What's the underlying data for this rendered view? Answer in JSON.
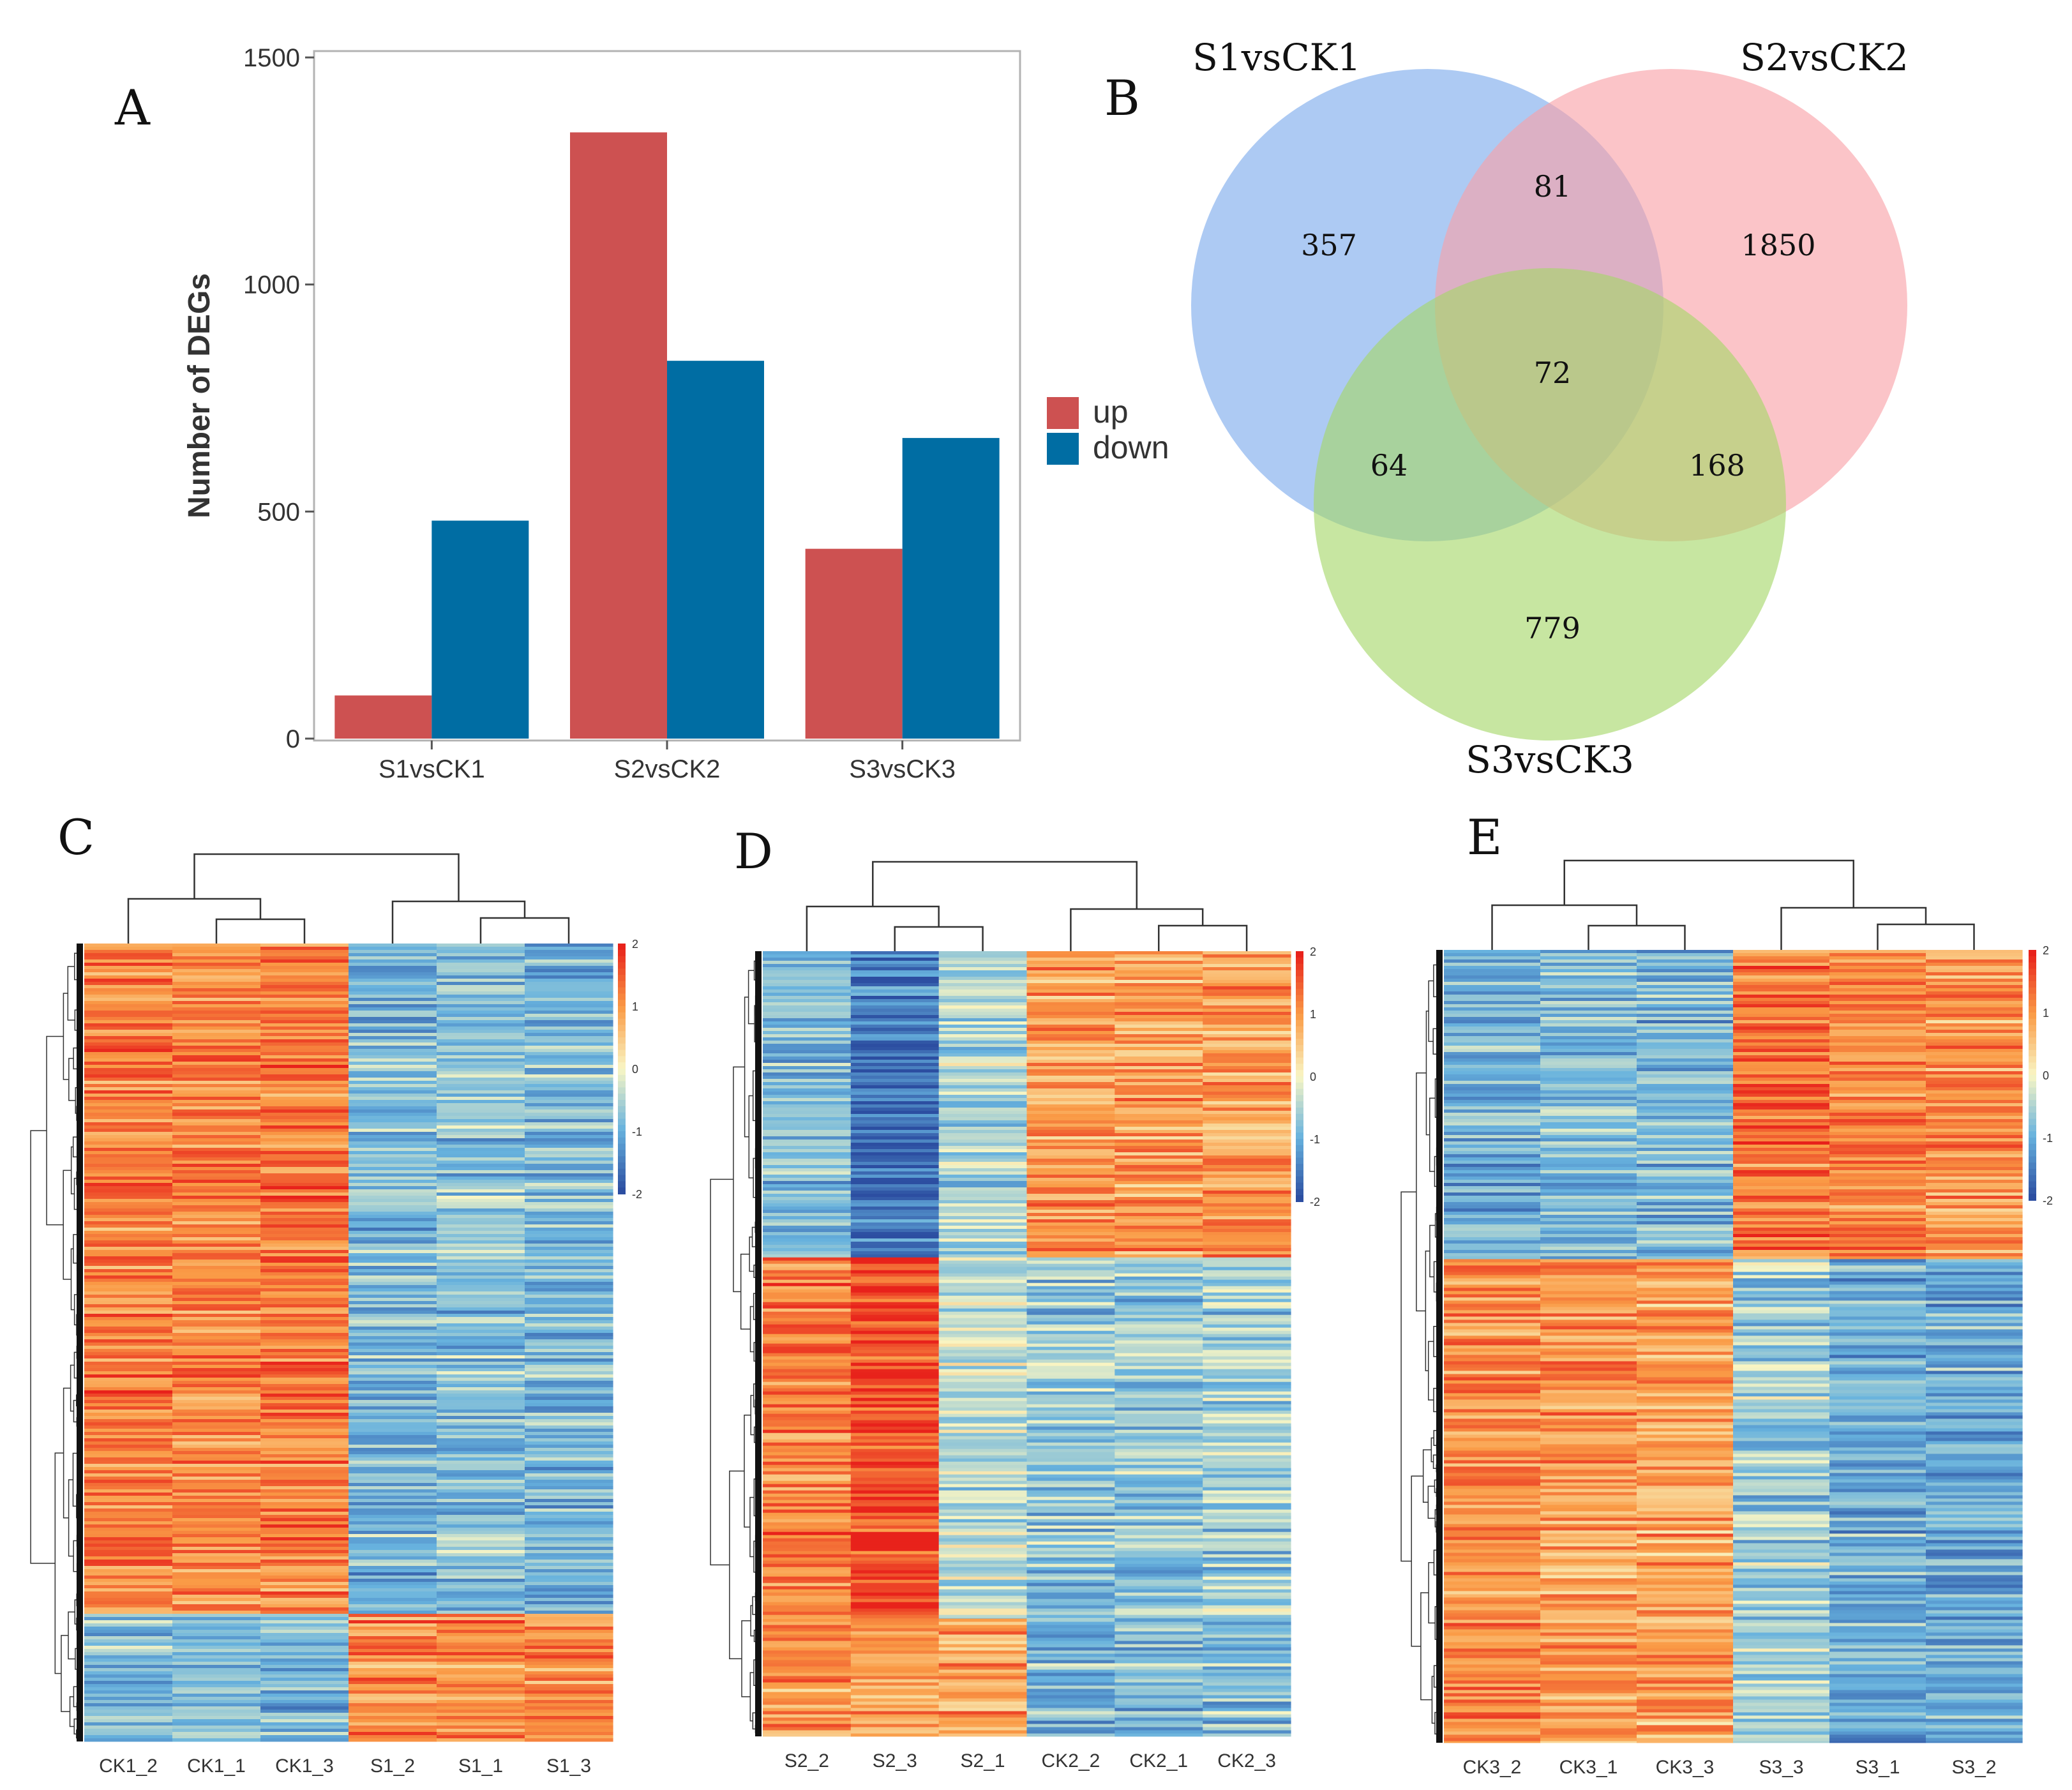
{
  "colors": {
    "up": "#cd5151",
    "down": "#006da3",
    "venn_s1": "#7aa9ec",
    "venn_s2": "#f8a0a6",
    "venn_s3": "#a4d668",
    "heat_low": "#2c4ea1",
    "heat_mid": "#f9f6c4",
    "heat_high": "#e8221b"
  },
  "panels": {
    "a": "A",
    "b": "B",
    "c": "C",
    "d": "D",
    "e": "E"
  },
  "chart_data": [
    {
      "id": "A",
      "type": "bar",
      "title": "",
      "xlabel": "",
      "ylabel": "Number of DEGs",
      "ylim": [
        0,
        1500
      ],
      "yticks": [
        0,
        500,
        1000,
        1500
      ],
      "categories": [
        "S1vsCK1",
        "S2vsCK2",
        "S3vsCK3"
      ],
      "series": [
        {
          "name": "up",
          "values": [
            95,
            1335,
            418
          ]
        },
        {
          "name": "down",
          "values": [
            480,
            832,
            662
          ]
        }
      ],
      "legend": "right"
    },
    {
      "id": "B",
      "type": "venn",
      "sets": [
        "S1vsCK1",
        "S2vsCK2",
        "S3vsCK3"
      ],
      "regions": {
        "S1_only": "357",
        "S2_only": "1850",
        "S3_only": "779",
        "S1_S2": "81",
        "S1_S3": "64",
        "S2_S3": "168",
        "all": "72"
      }
    },
    {
      "id": "C",
      "type": "heatmap",
      "columns": [
        "CK1_2",
        "CK1_1",
        "CK1_3",
        "S1_2",
        "S1_1",
        "S1_3"
      ],
      "color_scale": {
        "min": -2,
        "max": 2,
        "ticks": [
          "2",
          "1",
          "0",
          "-1",
          "-2"
        ]
      },
      "clusters": [
        {
          "fraction": 0.84,
          "column_means": [
            1.2,
            1.15,
            1.25,
            -0.9,
            -0.8,
            -0.9
          ]
        },
        {
          "fraction": 0.16,
          "column_means": [
            -0.9,
            -0.9,
            -1.0,
            1.1,
            1.1,
            1.0
          ]
        }
      ]
    },
    {
      "id": "D",
      "type": "heatmap",
      "columns": [
        "S2_2",
        "S2_3",
        "S2_1",
        "CK2_2",
        "CK2_1",
        "CK2_3"
      ],
      "color_scale": {
        "min": -2,
        "max": 2,
        "ticks": [
          "2",
          "1",
          "0",
          "-1",
          "-2"
        ]
      },
      "clusters": [
        {
          "fraction": 0.39,
          "column_means": [
            -0.8,
            -1.6,
            -0.5,
            1.0,
            1.0,
            1.0
          ]
        },
        {
          "fraction": 0.46,
          "column_means": [
            1.2,
            1.7,
            -0.4,
            -0.7,
            -0.7,
            -0.6
          ]
        },
        {
          "fraction": 0.15,
          "column_means": [
            1.0,
            0.8,
            0.9,
            -0.9,
            -0.9,
            -0.8
          ]
        }
      ]
    },
    {
      "id": "E",
      "type": "heatmap",
      "columns": [
        "CK3_2",
        "CK3_1",
        "CK3_3",
        "S3_3",
        "S3_1",
        "S3_2"
      ],
      "color_scale": {
        "min": -2,
        "max": 2,
        "ticks": [
          "2",
          "1",
          "0",
          "-1",
          "-2"
        ]
      },
      "clusters": [
        {
          "fraction": 0.39,
          "column_means": [
            -1.0,
            -0.8,
            -0.9,
            1.3,
            1.1,
            1.0
          ]
        },
        {
          "fraction": 0.61,
          "column_means": [
            1.1,
            1.0,
            0.9,
            -0.6,
            -1.0,
            -1.0
          ]
        }
      ]
    }
  ]
}
